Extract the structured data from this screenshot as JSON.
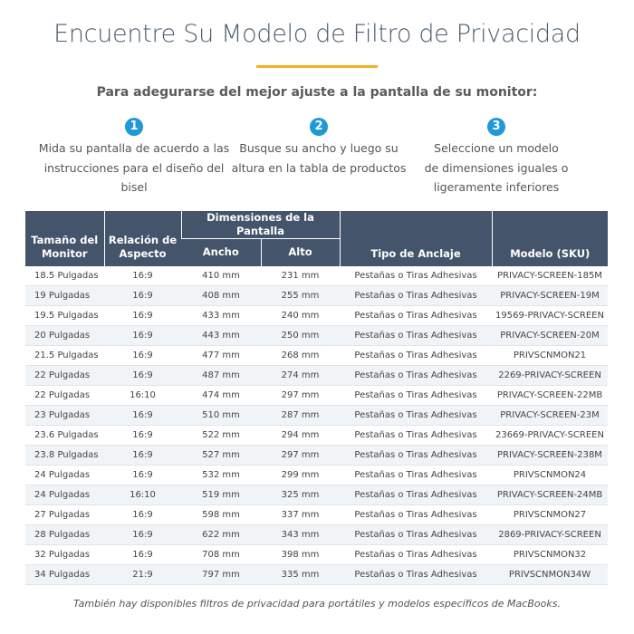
{
  "header": {
    "title": "Encuentre Su Modelo de Filtro de Privacidad",
    "subtitle": "Para adegurarse del mejor ajuste a la pantalla de su monitor:"
  },
  "steps": [
    {
      "number": "1",
      "lines": [
        "Mida su pantalla de acuerdo a las",
        "instrucciones para el diseño del",
        "bisel"
      ]
    },
    {
      "number": "2",
      "lines": [
        "Busque su ancho y luego su",
        "altura en la tabla de productos"
      ]
    },
    {
      "number": "3",
      "lines": [
        "Seleccione un modelo",
        "de dimensiones iguales o",
        "ligeramente inferiores"
      ]
    }
  ],
  "table": {
    "headers": {
      "size": "Tamaño del Monitor",
      "ratio": "Relación de Aspecto",
      "dimensions": "Dimensiones de la Pantalla",
      "width": "Ancho",
      "height": "Alto",
      "mount": "Tipo de Anclaje",
      "model": "Modelo (SKU)"
    },
    "rows": [
      [
        "18.5 Pulgadas",
        "16:9",
        "410 mm",
        "231 mm",
        "Pestañas o Tiras Adhesivas",
        "PRIVACY-SCREEN-185M"
      ],
      [
        "19 Pulgadas",
        "16:9",
        "408 mm",
        "255 mm",
        "Pestañas o Tiras Adhesivas",
        "PRIVACY-SCREEN-19M"
      ],
      [
        "19.5 Pulgadas",
        "16:9",
        "433 mm",
        "240 mm",
        "Pestañas o Tiras Adhesivas",
        "19569-PRIVACY-SCREEN"
      ],
      [
        "20 Pulgadas",
        "16:9",
        "443 mm",
        "250 mm",
        "Pestañas o Tiras Adhesivas",
        "PRIVACY-SCREEN-20M"
      ],
      [
        "21.5 Pulgadas",
        "16:9",
        "477 mm",
        "268 mm",
        "Pestañas o Tiras Adhesivas",
        "PRIVSCNMON21"
      ],
      [
        "22 Pulgadas",
        "16:9",
        "487 mm",
        "274 mm",
        "Pestañas o Tiras Adhesivas",
        "2269-PRIVACY-SCREEN"
      ],
      [
        "22 Pulgadas",
        "16:10",
        "474 mm",
        "297 mm",
        "Pestañas o Tiras Adhesivas",
        "PRIVACY-SCREEN-22MB"
      ],
      [
        "23 Pulgadas",
        "16:9",
        "510 mm",
        "287 mm",
        "Pestañas o Tiras Adhesivas",
        "PRIVACY-SCREEN-23M"
      ],
      [
        "23.6 Pulgadas",
        "16:9",
        "522 mm",
        "294 mm",
        "Pestañas o Tiras Adhesivas",
        "23669-PRIVACY-SCREEN"
      ],
      [
        "23.8 Pulgadas",
        "16:9",
        "527 mm",
        "297 mm",
        "Pestañas o Tiras Adhesivas",
        "PRIVACY-SCREEN-238M"
      ],
      [
        "24 Pulgadas",
        "16:9",
        "532 mm",
        "299 mm",
        "Pestañas o Tiras Adhesivas",
        "PRIVSCNMON24"
      ],
      [
        "24 Pulgadas",
        "16:10",
        "519 mm",
        "325 mm",
        "Pestañas o Tiras Adhesivas",
        "PRIVACY-SCREEN-24MB"
      ],
      [
        "27 Pulgadas",
        "16:9",
        "598 mm",
        "337 mm",
        "Pestañas o Tiras Adhesivas",
        "PRIVSCNMON27"
      ],
      [
        "28 Pulgadas",
        "16:9",
        "622 mm",
        "343 mm",
        "Pestañas o Tiras Adhesivas",
        "2869-PRIVACY-SCREEN"
      ],
      [
        "32 Pulgadas",
        "16:9",
        "708 mm",
        "398 mm",
        "Pestañas o Tiras Adhesivas",
        "PRIVSCNMON32"
      ],
      [
        "34 Pulgadas",
        "21:9",
        "797 mm",
        "335 mm",
        "Pestañas o Tiras Adhesivas",
        "PRIVSCNMON34W"
      ]
    ]
  },
  "footer": "También hay disponibles filtros de privacidad para portátiles y modelos específicos de MacBooks."
}
